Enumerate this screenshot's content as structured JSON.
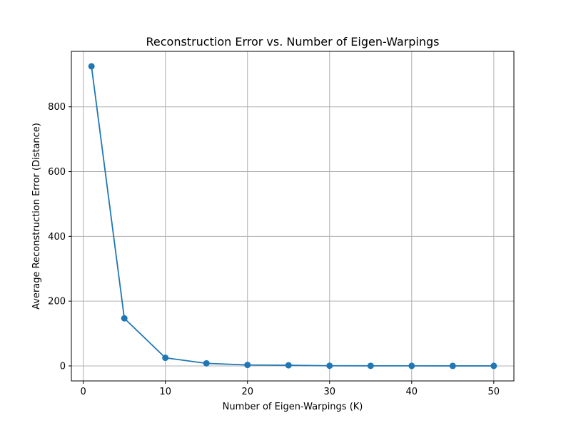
{
  "chart_data": {
    "type": "line",
    "title": "Reconstruction Error vs. Number of Eigen-Warpings",
    "xlabel": "Number of Eigen-Warpings (K)",
    "ylabel": "Average Reconstruction Error (Distance)",
    "xlim": [
      -1.45,
      52.45
    ],
    "ylim": [
      -46.3,
      971.2
    ],
    "xticks": [
      0,
      10,
      20,
      30,
      40,
      50
    ],
    "yticks": [
      0,
      200,
      400,
      600,
      800
    ],
    "grid": true,
    "legend": "none",
    "series": [
      {
        "color": "#1f77b4",
        "marker": "circle",
        "x": [
          1,
          5,
          10,
          15,
          20,
          25,
          30,
          35,
          40,
          45,
          50
        ],
        "y": [
          925,
          147,
          25,
          8,
          3,
          2,
          0.5,
          0.3,
          0.2,
          0.1,
          0.1
        ]
      }
    ]
  }
}
